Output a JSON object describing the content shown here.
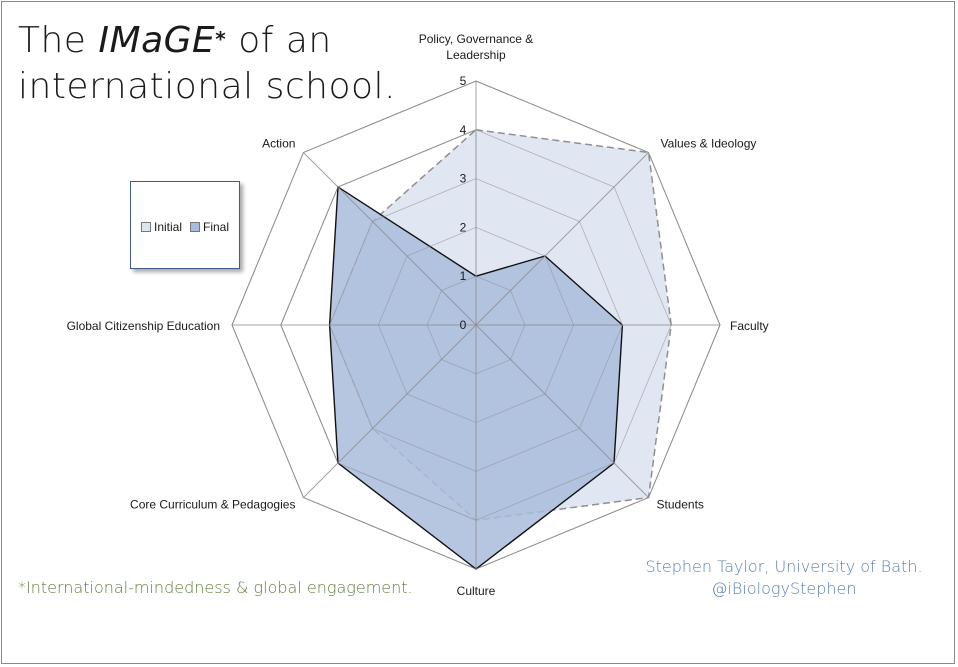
{
  "title": {
    "line1_pre": "The ",
    "line1_emph": "IMaGE",
    "line1_star": "*",
    "line1_post": " of an",
    "line2": "international school."
  },
  "footnote": "*International-mindedness & global engagement.",
  "credit": {
    "line1": "Stephen Taylor, University of Bath.",
    "line2": "@iBiologyStephen"
  },
  "colors": {
    "initial_fill": "#dfe6f1",
    "initial_stroke": "#8f8f8f",
    "final_fill": "#a9bcdc",
    "final_stroke": "#111111",
    "grid": "#8c8c8c"
  },
  "chart_data": {
    "type": "radar",
    "title": "The IMaGE* of an international school.",
    "axes": [
      "Policy, Governance & Leadership",
      "Values & Ideology",
      "Faculty",
      "Students",
      "Culture",
      "Core Curriculum & Pedagogies",
      "Global Citizenship Education",
      "Action"
    ],
    "axis_label_lines": [
      [
        "Policy, Governance &",
        "Leadership"
      ],
      [
        "Values & Ideology"
      ],
      [
        "Faculty"
      ],
      [
        "Students"
      ],
      [
        "Culture"
      ],
      [
        "Core Curriculum & Pedagogies"
      ],
      [
        "Global Citizenship Education"
      ],
      [
        "Action"
      ]
    ],
    "rlim": [
      0,
      5
    ],
    "ticks": [
      "0",
      "1",
      "2",
      "3",
      "4",
      "5"
    ],
    "series": [
      {
        "name": "Initial",
        "values": [
          4,
          5,
          4,
          5,
          4,
          3,
          3,
          3
        ]
      },
      {
        "name": "Final",
        "values": [
          1,
          2,
          3,
          4,
          5,
          4,
          3,
          4
        ]
      }
    ],
    "legend": {
      "position": "left",
      "entries": [
        "Initial",
        "Final"
      ]
    },
    "grid": true
  }
}
